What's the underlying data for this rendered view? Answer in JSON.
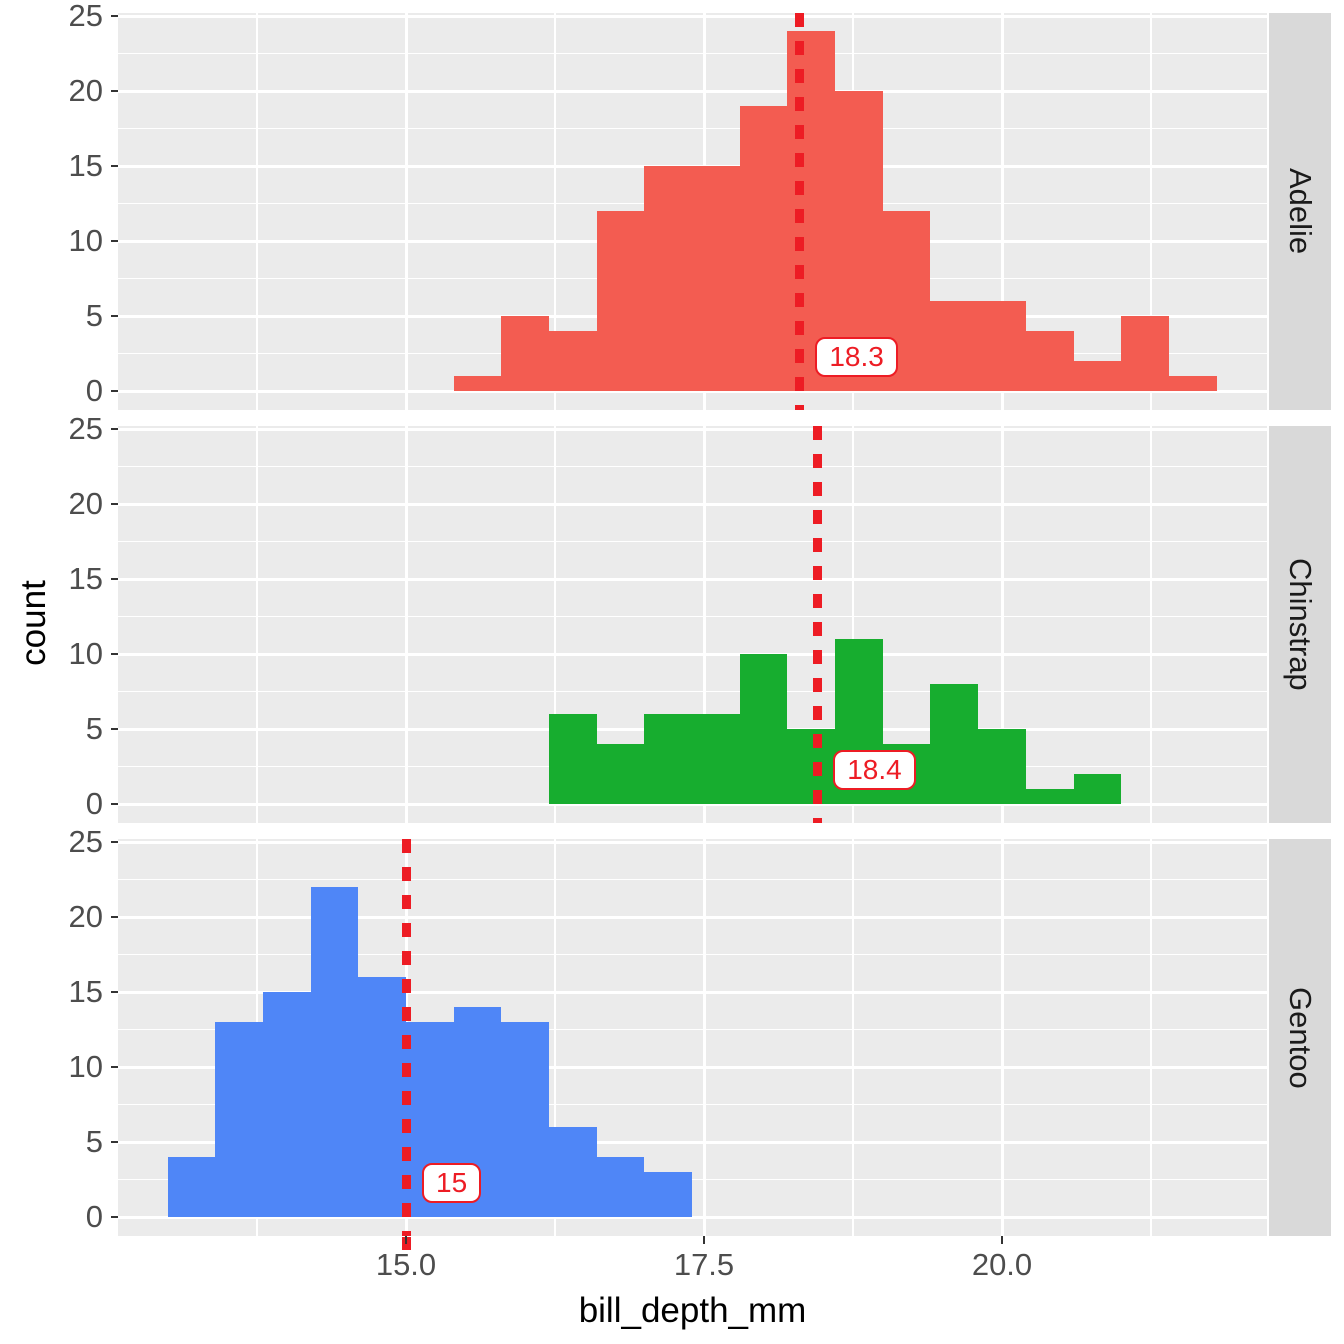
{
  "figure_type": "faceted histogram (ggplot2 style), one panel per penguin species",
  "axes": {
    "x_title": "bill_depth_mm",
    "y_title": "count",
    "x_tick_labels": [
      "15.0",
      "17.5",
      "20.0"
    ],
    "y_tick_labels": [
      "0",
      "5",
      "10",
      "15",
      "20",
      "25"
    ]
  },
  "colors": {
    "panel_background": "#EBEBEB",
    "gridline": "#FFFFFF",
    "strip_background": "#D9D9D9",
    "strip_text": "#1A1A1A",
    "axis_text": "#4D4D4D",
    "axis_title": "#000000",
    "median_red": "#ED1C24",
    "label_background": "#FFFFFF",
    "adelie_fill": "#F35C51",
    "chinstrap_fill": "#17AD2F",
    "gentoo_fill": "#4F86F7"
  },
  "chart_data": {
    "type": "bar",
    "subtype": "faceted_histogram",
    "title": "",
    "xlabel": "bill_depth_mm",
    "ylabel": "count",
    "bin_width": 0.4,
    "x_axis": {
      "major_ticks": [
        15.0,
        17.5,
        20.0
      ],
      "tick_labels": [
        "15.0",
        "17.5",
        "20.0"
      ],
      "minor_ticks": [
        13.75,
        16.25,
        18.75,
        21.25
      ],
      "range": [
        12.55,
        22.25
      ]
    },
    "y_axis": {
      "major_ticks": [
        0,
        5,
        10,
        15,
        20,
        25
      ],
      "tick_labels": [
        "0",
        "5",
        "10",
        "15",
        "20",
        "25"
      ],
      "minor_ticks": [
        2.5,
        7.5,
        12.5,
        17.5,
        22.5
      ],
      "range": [
        -1.2,
        25.2
      ]
    },
    "facets": [
      {
        "label": "Adelie",
        "fill": "#F35C51",
        "bin_start": 15.4,
        "counts": [
          1,
          5,
          4,
          12,
          15,
          15,
          19,
          24,
          20,
          12,
          6,
          6,
          4,
          2,
          5,
          1
        ],
        "median": {
          "value": 18.3,
          "label": "18.3"
        }
      },
      {
        "label": "Chinstrap",
        "fill": "#17AD2F",
        "bin_start": 16.2,
        "counts": [
          6,
          4,
          6,
          6,
          10,
          5,
          11,
          4,
          8,
          5,
          1,
          2
        ],
        "median": {
          "value": 18.45,
          "label": "18.4"
        }
      },
      {
        "label": "Gentoo",
        "fill": "#4F86F7",
        "bin_start": 13.0,
        "counts": [
          4,
          13,
          15,
          22,
          16,
          13,
          14,
          13,
          6,
          4,
          3
        ],
        "median": {
          "value": 15.0,
          "label": "15"
        }
      }
    ],
    "legend": "none (facet strips on right edge label the species)"
  }
}
